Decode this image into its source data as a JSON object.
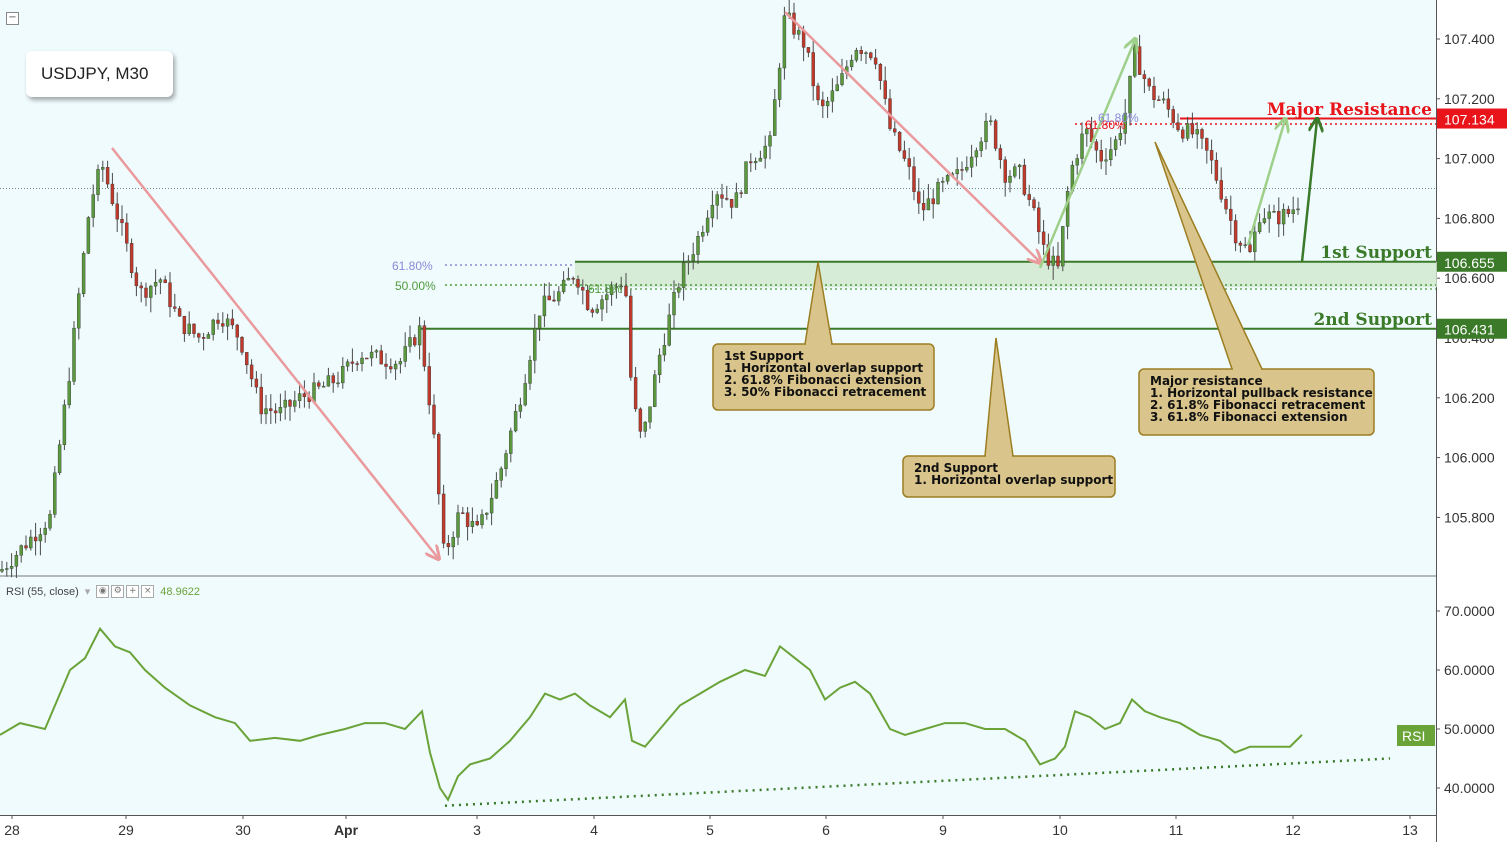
{
  "chart_data": {
    "type": "candlestick",
    "symbol": "USDJPY, M30",
    "price_axis": {
      "range": [
        105.6,
        107.5
      ],
      "ticks": [
        "107.400",
        "107.200",
        "107.000",
        "106.800",
        "106.600",
        "106.400",
        "106.200",
        "106.000",
        "105.800"
      ],
      "last_price_line": 106.9
    },
    "time_axis": {
      "labels": [
        "28",
        "29",
        "30",
        "Apr",
        "3",
        "4",
        "5",
        "6",
        "9",
        "10",
        "11",
        "12",
        "13"
      ]
    },
    "levels": [
      {
        "name": "Major Resistance",
        "value": 107.134,
        "label": "107.134",
        "color": "#e8141a"
      },
      {
        "name": "1st Support",
        "value": 106.655,
        "label": "106.655",
        "color": "#3a7a28"
      },
      {
        "name": "2nd Support",
        "value": 106.431,
        "label": "106.431",
        "color": "#3a7a28"
      }
    ],
    "fib_labels": {
      "left_618": "61.80%",
      "left_50": "50.00%",
      "mid_618": "61.8%",
      "right_618": "61.80%",
      "right_618b": "61.80%"
    },
    "callouts": {
      "first_support": [
        "1st Support",
        "1. Horizontal overlap support",
        "2. 61.8% Fibonacci extension",
        "3. 50% Fibonacci retracement"
      ],
      "second_support": [
        "2nd Support",
        "1. Horizontal overlap support"
      ],
      "major_resistance": [
        "Major resistance",
        "1. Horizontal pullback resistance",
        "2. 61.8% Fibonacci retracement",
        "3. 61.8% Fibonacci extension"
      ]
    },
    "price_path": [
      [
        0,
        105.62
      ],
      [
        50,
        105.8
      ],
      [
        70,
        106.3
      ],
      [
        90,
        106.85
      ],
      [
        102,
        106.98
      ],
      [
        120,
        106.78
      ],
      [
        140,
        106.55
      ],
      [
        160,
        106.6
      ],
      [
        180,
        106.45
      ],
      [
        200,
        106.4
      ],
      [
        220,
        106.48
      ],
      [
        240,
        106.4
      ],
      [
        260,
        106.17
      ],
      [
        280,
        106.15
      ],
      [
        300,
        106.2
      ],
      [
        320,
        106.23
      ],
      [
        340,
        106.27
      ],
      [
        360,
        106.35
      ],
      [
        380,
        106.33
      ],
      [
        400,
        106.32
      ],
      [
        420,
        106.43
      ],
      [
        433,
        106.1
      ],
      [
        444,
        105.67
      ],
      [
        460,
        105.82
      ],
      [
        478,
        105.75
      ],
      [
        500,
        105.95
      ],
      [
        520,
        106.2
      ],
      [
        540,
        106.5
      ],
      [
        560,
        106.55
      ],
      [
        575,
        106.62
      ],
      [
        590,
        106.5
      ],
      [
        615,
        106.57
      ],
      [
        625,
        106.6
      ],
      [
        632,
        106.2
      ],
      [
        642,
        106.05
      ],
      [
        660,
        106.35
      ],
      [
        680,
        106.6
      ],
      [
        700,
        106.75
      ],
      [
        715,
        106.9
      ],
      [
        735,
        106.85
      ],
      [
        750,
        107.0
      ],
      [
        770,
        107.05
      ],
      [
        785,
        107.48
      ],
      [
        805,
        107.38
      ],
      [
        820,
        107.15
      ],
      [
        840,
        107.25
      ],
      [
        855,
        107.38
      ],
      [
        875,
        107.35
      ],
      [
        890,
        107.1
      ],
      [
        910,
        106.95
      ],
      [
        920,
        106.82
      ],
      [
        940,
        106.9
      ],
      [
        960,
        106.95
      ],
      [
        975,
        107.05
      ],
      [
        990,
        107.12
      ],
      [
        1005,
        106.95
      ],
      [
        1020,
        106.95
      ],
      [
        1035,
        106.8
      ],
      [
        1045,
        106.68
      ],
      [
        1058,
        106.63
      ],
      [
        1070,
        106.95
      ],
      [
        1085,
        107.1
      ],
      [
        1100,
        107.0
      ],
      [
        1115,
        107.05
      ],
      [
        1125,
        107.15
      ],
      [
        1135,
        107.35
      ],
      [
        1150,
        107.22
      ],
      [
        1165,
        107.18
      ],
      [
        1180,
        107.1
      ],
      [
        1195,
        107.08
      ],
      [
        1210,
        107.0
      ],
      [
        1225,
        106.85
      ],
      [
        1235,
        106.75
      ],
      [
        1250,
        106.68
      ],
      [
        1260,
        106.82
      ],
      [
        1275,
        106.8
      ],
      [
        1290,
        106.82
      ],
      [
        1302,
        106.87
      ]
    ],
    "rsi": {
      "label": "RSI (55, close)",
      "value": "48.9622",
      "tag": "RSI",
      "range": [
        36,
        75
      ],
      "ticks": [
        "70.0000",
        "60.0000",
        "50.0000",
        "40.0000"
      ],
      "path": [
        [
          0,
          49
        ],
        [
          20,
          51
        ],
        [
          45,
          50
        ],
        [
          70,
          60
        ],
        [
          85,
          62
        ],
        [
          100,
          67
        ],
        [
          115,
          64
        ],
        [
          130,
          63
        ],
        [
          145,
          60
        ],
        [
          165,
          57
        ],
        [
          190,
          54
        ],
        [
          215,
          52
        ],
        [
          235,
          51
        ],
        [
          250,
          48
        ],
        [
          275,
          48.5
        ],
        [
          300,
          48
        ],
        [
          320,
          49
        ],
        [
          345,
          50
        ],
        [
          365,
          51
        ],
        [
          385,
          51
        ],
        [
          405,
          50
        ],
        [
          422,
          53
        ],
        [
          430,
          46
        ],
        [
          440,
          40
        ],
        [
          448,
          38
        ],
        [
          458,
          42
        ],
        [
          470,
          44
        ],
        [
          490,
          45
        ],
        [
          510,
          48
        ],
        [
          530,
          52
        ],
        [
          545,
          56
        ],
        [
          560,
          55
        ],
        [
          575,
          56
        ],
        [
          590,
          54
        ],
        [
          610,
          52
        ],
        [
          625,
          55
        ],
        [
          632,
          48
        ],
        [
          645,
          47
        ],
        [
          660,
          50
        ],
        [
          680,
          54
        ],
        [
          700,
          56
        ],
        [
          720,
          58
        ],
        [
          745,
          60
        ],
        [
          765,
          59
        ],
        [
          780,
          64
        ],
        [
          795,
          62
        ],
        [
          810,
          60
        ],
        [
          825,
          55
        ],
        [
          840,
          57
        ],
        [
          855,
          58
        ],
        [
          870,
          56
        ],
        [
          890,
          50
        ],
        [
          905,
          49
        ],
        [
          925,
          50
        ],
        [
          945,
          51
        ],
        [
          965,
          51
        ],
        [
          985,
          50
        ],
        [
          1005,
          50
        ],
        [
          1025,
          48
        ],
        [
          1040,
          44
        ],
        [
          1055,
          45
        ],
        [
          1065,
          47
        ],
        [
          1075,
          53
        ],
        [
          1090,
          52
        ],
        [
          1105,
          50
        ],
        [
          1120,
          51
        ],
        [
          1132,
          55
        ],
        [
          1145,
          53
        ],
        [
          1160,
          52
        ],
        [
          1180,
          51
        ],
        [
          1200,
          49
        ],
        [
          1220,
          48
        ],
        [
          1235,
          46
        ],
        [
          1250,
          47
        ],
        [
          1270,
          47
        ],
        [
          1290,
          47
        ],
        [
          1302,
          49
        ]
      ],
      "trendline": [
        [
          445,
          37
        ],
        [
          1390,
          45
        ]
      ]
    }
  },
  "colors": {
    "bull": "#5b9a3c",
    "bear": "#c0392b",
    "arrow_red": "#ea9a9c",
    "arrow_green": "#9ed08a",
    "support_green": "#3a7a28",
    "resistance_red": "#e8141a",
    "callout_fill": "#d9c58b",
    "callout_border": "#9c7e22",
    "rsi_line": "#6aa338"
  },
  "ui": {
    "collapse_icon": "minus-square-icon",
    "rsi_buttons": [
      "eye-icon",
      "gear-icon",
      "plus-icon",
      "close-icon"
    ]
  }
}
